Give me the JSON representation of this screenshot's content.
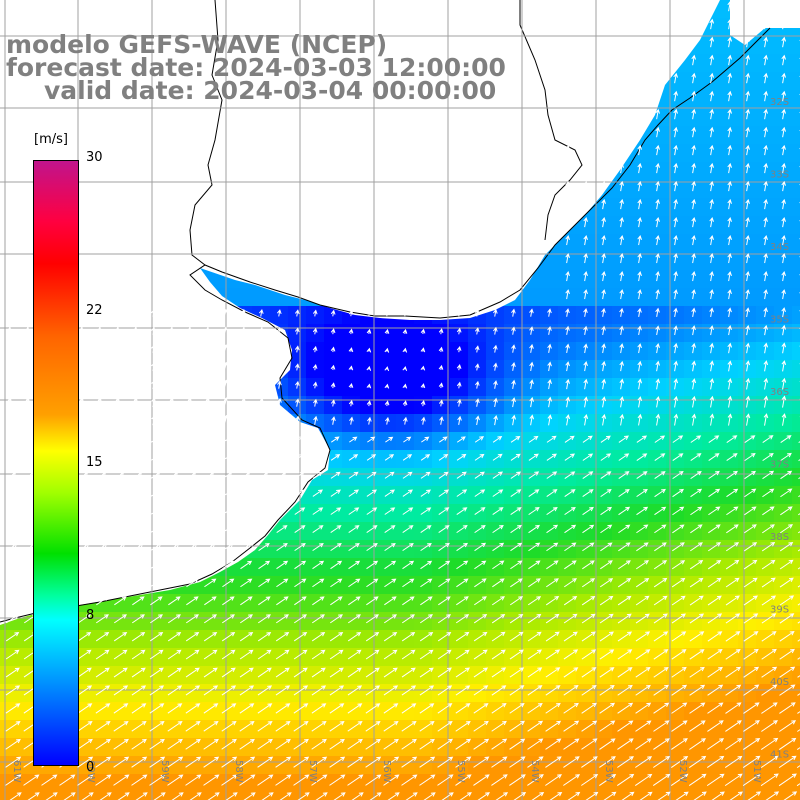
{
  "header": {
    "line1": "modelo GEFS-WAVE (NCEP)",
    "line2": "forecast date: 2024-03-03 12:00:00",
    "line3": "valid date: 2024-03-04 00:00:00"
  },
  "colorbar": {
    "unit": "[m/s]",
    "ticks": [
      "30",
      "22",
      "15",
      "8",
      "0"
    ],
    "colors": [
      "#c0148c",
      "#ff0000",
      "#ff6400",
      "#ffff00",
      "#00e000",
      "#00ffff",
      "#0000ff"
    ]
  },
  "map": {
    "lat_labels": [
      "32S",
      "33S",
      "34S",
      "35S",
      "36S",
      "37S",
      "38S",
      "39S",
      "40S",
      "41S"
    ],
    "lon_labels": [
      "61W",
      "60W",
      "59W",
      "58W",
      "57W",
      "56W",
      "55W",
      "54W",
      "53W",
      "52W",
      "51W"
    ],
    "land_color": "#ffffff",
    "grid_color": "#a0a0a0",
    "coast_color": "#000000"
  }
}
